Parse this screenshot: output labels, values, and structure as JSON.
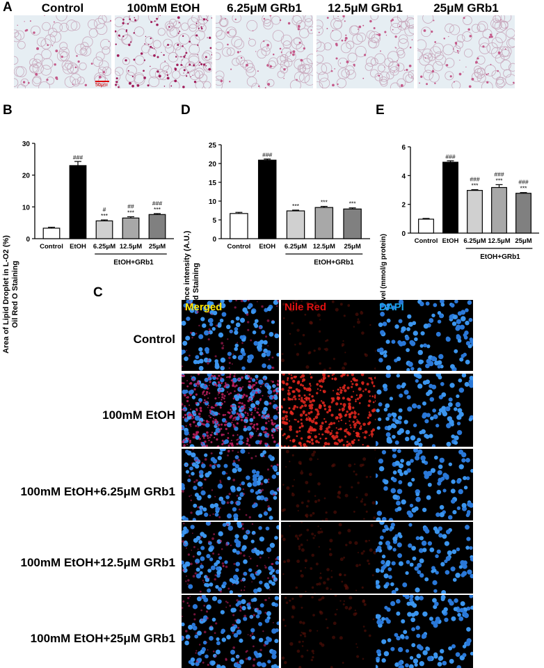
{
  "panel_letters": {
    "a": "A",
    "b": "B",
    "c": "C",
    "d": "D",
    "e": "E"
  },
  "panel_a": {
    "labels": [
      "Control",
      "100mM EtOH",
      "6.25μM GRb1",
      "12.5μM GRb1",
      "25μM GRb1"
    ],
    "scalebar": "50μm"
  },
  "panel_b": {
    "ylabel_1": "Area of Lipid Droplet in L-O2 (%)",
    "ylabel_2": "Oil Red O Staining",
    "group_label": "EtOH+GRb1"
  },
  "panel_d": {
    "ylabel_1": "Mean Fluorescence intensity  (A.U.)",
    "ylabel_2": "Nile Red Staining",
    "group_label": "EtOH+GRb1"
  },
  "panel_e": {
    "ylabel_1": "TG Level (mmol/g protein)",
    "group_label": "EtOH+GRb1"
  },
  "chart_data": [
    {
      "type": "bar",
      "panel": "B",
      "categories": [
        "Control",
        "EtOH",
        "6.25μM",
        "12.5μM",
        "25μM"
      ],
      "values": [
        3.3,
        23.0,
        5.6,
        6.5,
        7.6
      ],
      "errors": [
        0.3,
        1.3,
        0.3,
        0.4,
        0.3
      ],
      "annotations": [
        [
          "",
          ""
        ],
        [
          "###",
          ""
        ],
        [
          "#",
          "***"
        ],
        [
          "##",
          "***"
        ],
        [
          "###",
          "***"
        ]
      ],
      "colors": [
        "#ffffff",
        "#000000",
        "#d0d0d0",
        "#a8a8a8",
        "#808080"
      ],
      "ylabel": "Area of Lipid Droplet in L-O2 (%) Oil Red O Staining",
      "ylim": [
        0,
        30
      ],
      "yticks": [
        0,
        10,
        20,
        30
      ]
    },
    {
      "type": "bar",
      "panel": "D",
      "categories": [
        "Control",
        "EtOH",
        "6.25μM",
        "12.5μM",
        "25μM"
      ],
      "values": [
        6.7,
        20.9,
        7.4,
        8.3,
        7.9
      ],
      "errors": [
        0.3,
        0.3,
        0.2,
        0.3,
        0.3
      ],
      "annotations": [
        [
          "",
          ""
        ],
        [
          "###",
          ""
        ],
        [
          "***",
          ""
        ],
        [
          "***",
          ""
        ],
        [
          "***",
          ""
        ]
      ],
      "colors": [
        "#ffffff",
        "#000000",
        "#d0d0d0",
        "#a8a8a8",
        "#808080"
      ],
      "ylabel": "Mean Fluorescence intensity (A.U.) Nile Red Staining",
      "ylim": [
        0,
        25
      ],
      "yticks": [
        0,
        5,
        10,
        15,
        20,
        25
      ]
    },
    {
      "type": "bar",
      "panel": "E",
      "categories": [
        "Control",
        "EtOH",
        "6.25μM",
        "12.5μM",
        "25μM"
      ],
      "values": [
        0.97,
        4.93,
        2.97,
        3.17,
        2.77
      ],
      "errors": [
        0.05,
        0.1,
        0.05,
        0.2,
        0.05
      ],
      "annotations": [
        [
          "",
          ""
        ],
        [
          "###",
          ""
        ],
        [
          "###",
          "***"
        ],
        [
          "###",
          "***"
        ],
        [
          "###",
          "***"
        ]
      ],
      "colors": [
        "#ffffff",
        "#000000",
        "#d0d0d0",
        "#a8a8a8",
        "#808080"
      ],
      "ylabel": "TG Level (mmol/g protein)",
      "ylim": [
        0,
        6
      ],
      "yticks": [
        0,
        2,
        4,
        6
      ]
    }
  ],
  "panel_c": {
    "channels": [
      "Merged",
      "Nile Red",
      "DAPI"
    ],
    "channel_colors": [
      "#ffe600",
      "#e01010",
      "#1aa0e8"
    ],
    "rows": [
      "Control",
      "100mM EtOH",
      "100mM EtOH+6.25μM GRb1",
      "100mM EtOH+12.5μM GRb1",
      "100mM EtOH+25μM GRb1"
    ],
    "red_intensity": [
      0.08,
      0.9,
      0.12,
      0.14,
      0.12
    ]
  }
}
